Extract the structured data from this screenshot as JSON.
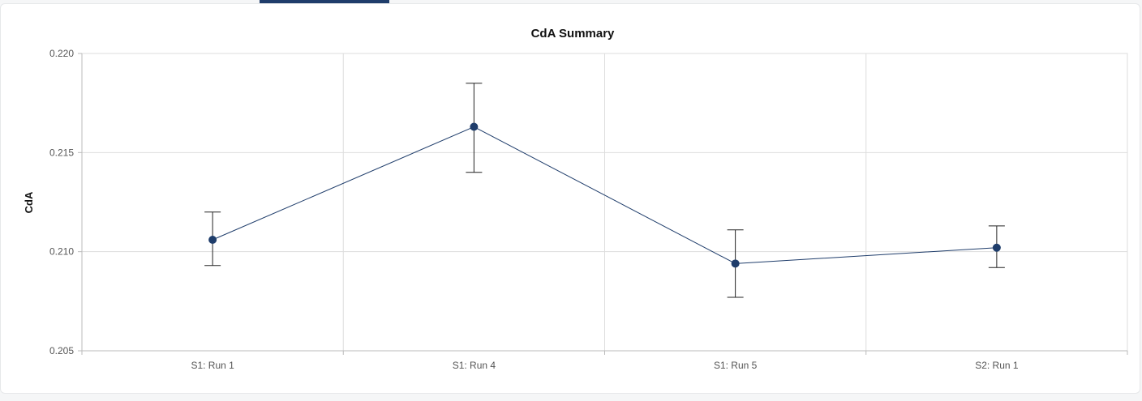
{
  "colors": {
    "series": "#1f3d6b",
    "error_bar": "#222222",
    "grid": "#dddddd",
    "axis": "#bbbbbb"
  },
  "chart_data": {
    "type": "line",
    "title": "CdA Summary",
    "xlabel": "",
    "ylabel": "CdA",
    "ylim": [
      0.205,
      0.22
    ],
    "yticks": [
      "0.205",
      "0.210",
      "0.215",
      "0.220"
    ],
    "grid": true,
    "categories": [
      "S1: Run 1",
      "S1: Run 4",
      "S1: Run 5",
      "S2: Run 1"
    ],
    "series": [
      {
        "values": [
          0.2106,
          0.2163,
          0.2094,
          0.2102
        ],
        "error_low": [
          0.2093,
          0.214,
          0.2077,
          0.2092
        ],
        "error_high": [
          0.212,
          0.2185,
          0.2111,
          0.2113
        ]
      }
    ]
  }
}
